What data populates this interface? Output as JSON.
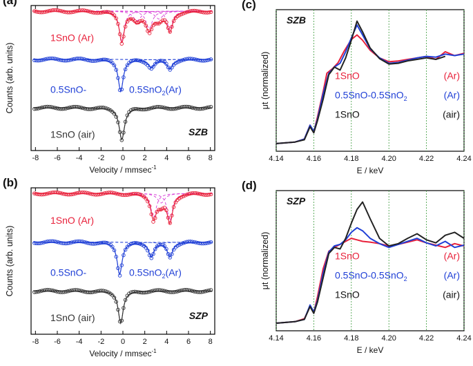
{
  "chart_data": [
    {
      "id": "a",
      "panel_label": "(a)",
      "type": "scatter",
      "title": "",
      "xlabel": "Velocity / mmsec",
      "xlabel_sup": "-1",
      "ylabel": "Counts (arb. units)",
      "xlim": [
        -8.4,
        8.4
      ],
      "xticks": [
        -8,
        -6,
        -4,
        -2,
        0,
        2,
        4,
        6,
        8
      ],
      "xtick_labels": [
        "-8",
        "-6",
        "-4",
        "-2",
        "0",
        "2",
        "4",
        "6",
        "8"
      ],
      "sample_tag": "SZB",
      "series": [
        {
          "name": "1SnO (Ar)",
          "label_main": "1SnO (Ar)",
          "label_left": "",
          "label_right": "",
          "label_sub": "",
          "label_tail": "",
          "color": "#e8203a",
          "fit_color": "#d63ad6",
          "dips": [
            {
              "center": -0.1,
              "depth": 0.95,
              "width": 0.55
            },
            {
              "center": 2.4,
              "depth": 0.55,
              "width": 0.7
            },
            {
              "center": 4.3,
              "depth": 0.6,
              "width": 0.6
            },
            {
              "center": 1.3,
              "depth": 0.3,
              "width": 0.9
            },
            {
              "center": 3.3,
              "depth": 0.25,
              "width": 0.9
            }
          ]
        },
        {
          "name": "0.5SnO-0.5SnO2(Ar)",
          "label_main": "",
          "label_left": "0.5SnO-",
          "label_right": "0.5SnO",
          "label_sub": "2",
          "label_tail": "(Ar)",
          "color": "#1f3fd6",
          "fit_color": "#1f3fd6",
          "dips": [
            {
              "center": -0.2,
              "depth": 1.0,
              "width": 0.55
            },
            {
              "center": 2.6,
              "depth": 0.25,
              "width": 0.7
            },
            {
              "center": 4.3,
              "depth": 0.3,
              "width": 0.6
            }
          ]
        },
        {
          "name": "1SnO (air)",
          "label_main": "1SnO (air)",
          "label_left": "",
          "label_right": "",
          "label_sub": "",
          "label_tail": "",
          "color": "#333333",
          "fit_color": "#222222",
          "dips": [
            {
              "center": -0.1,
              "depth": 1.0,
              "width": 0.6
            }
          ]
        }
      ]
    },
    {
      "id": "b",
      "panel_label": "(b)",
      "type": "scatter",
      "title": "",
      "xlabel": "Velocity / mmsec",
      "xlabel_sup": "-1",
      "ylabel": "Counts (arb. units)",
      "xlim": [
        -8.4,
        8.4
      ],
      "xticks": [
        -8,
        -6,
        -4,
        -2,
        0,
        2,
        4,
        6,
        8
      ],
      "xtick_labels": [
        "-8",
        "-6",
        "-4",
        "-2",
        "0",
        "2",
        "4",
        "6",
        "8"
      ],
      "sample_tag": "SZP",
      "series": [
        {
          "name": "1SnO (Ar)",
          "label_main": "1SnO (Ar)",
          "label_left": "",
          "label_right": "",
          "label_sub": "",
          "label_tail": "",
          "color": "#e8203a",
          "fit_color": "#d63ad6",
          "dips": [
            {
              "center": 2.8,
              "depth": 0.75,
              "width": 0.6
            },
            {
              "center": 4.3,
              "depth": 0.85,
              "width": 0.6
            },
            {
              "center": 3.5,
              "depth": 0.3,
              "width": 0.8
            }
          ]
        },
        {
          "name": "0.5SnO-0.5SnO2(Ar)",
          "label_main": "",
          "label_left": "0.5SnO-",
          "label_right": "0.5SnO",
          "label_sub": "2",
          "label_tail": "(Ar)",
          "color": "#1f3fd6",
          "fit_color": "#1f3fd6",
          "dips": [
            {
              "center": -0.3,
              "depth": 1.0,
              "width": 0.55
            },
            {
              "center": 2.6,
              "depth": 0.45,
              "width": 0.6
            },
            {
              "center": 4.3,
              "depth": 0.45,
              "width": 0.6
            }
          ]
        },
        {
          "name": "1SnO (air)",
          "label_main": "1SnO (air)",
          "label_left": "",
          "label_right": "",
          "label_sub": "",
          "label_tail": "",
          "color": "#333333",
          "fit_color": "#222222",
          "dips": [
            {
              "center": -0.2,
              "depth": 1.0,
              "width": 0.55
            }
          ]
        }
      ]
    },
    {
      "id": "c",
      "panel_label": "(c)",
      "type": "line",
      "title": "",
      "xlabel": "E / keV",
      "ylabel": "μt (normalized)",
      "xlim": [
        4.14,
        4.24
      ],
      "xticks": [
        4.14,
        4.16,
        4.18,
        4.2,
        4.22,
        4.24
      ],
      "xtick_labels": [
        "4.14",
        "4.16",
        "4.18",
        "4.20",
        "4.22",
        "4.24"
      ],
      "ylim": [
        -0.1,
        1.75
      ],
      "grid_x": true,
      "sample_tag": "SZB",
      "legend": [
        {
          "main": "1SnO",
          "sub": "",
          "tag": "(Ar)",
          "color": "#e8203a"
        },
        {
          "main": "0.5SnO-0.5SnO",
          "sub": "2",
          "tag": "(Ar)",
          "color": "#1f3fd6"
        },
        {
          "main": "1SnO",
          "sub": "",
          "tag": "(air)",
          "color": "#111111"
        }
      ],
      "series": [
        {
          "name": "1SnO (Ar)",
          "color": "#e8203a",
          "x": [
            4.14,
            4.15,
            4.155,
            4.158,
            4.16,
            4.162,
            4.165,
            4.167,
            4.17,
            4.173,
            4.176,
            4.18,
            4.183,
            4.186,
            4.19,
            4.195,
            4.2,
            4.205,
            4.21,
            4.215,
            4.22,
            4.225,
            4.23,
            4.235,
            4.24
          ],
          "y": [
            0.0,
            0.02,
            0.06,
            0.24,
            0.15,
            0.35,
            0.68,
            0.92,
            0.98,
            1.06,
            1.2,
            1.36,
            1.42,
            1.35,
            1.22,
            1.12,
            1.07,
            1.08,
            1.1,
            1.12,
            1.14,
            1.1,
            1.2,
            1.15,
            1.18
          ]
        },
        {
          "name": "0.5SnO-0.5SnO2 (Ar)",
          "color": "#1f3fd6",
          "x": [
            4.14,
            4.15,
            4.155,
            4.158,
            4.16,
            4.162,
            4.165,
            4.168,
            4.171,
            4.174,
            4.177,
            4.18,
            4.183,
            4.186,
            4.19,
            4.195,
            4.2,
            4.205,
            4.21,
            4.215,
            4.22,
            4.225,
            4.23,
            4.235,
            4.24
          ],
          "y": [
            0.0,
            0.02,
            0.06,
            0.24,
            0.16,
            0.32,
            0.65,
            0.92,
            1.0,
            1.05,
            1.2,
            1.38,
            1.55,
            1.42,
            1.24,
            1.12,
            1.05,
            1.06,
            1.09,
            1.12,
            1.14,
            1.13,
            1.17,
            1.15,
            1.17
          ]
        },
        {
          "name": "1SnO (air)",
          "color": "#222222",
          "x": [
            4.14,
            4.15,
            4.155,
            4.158,
            4.16,
            4.162,
            4.165,
            4.168,
            4.171,
            4.174,
            4.177,
            4.18,
            4.183,
            4.186,
            4.19,
            4.195,
            4.2,
            4.205,
            4.21,
            4.215,
            4.22,
            4.225,
            4.23
          ],
          "y": [
            0.0,
            0.02,
            0.05,
            0.22,
            0.14,
            0.3,
            0.58,
            0.9,
            1.0,
            0.96,
            1.12,
            1.35,
            1.6,
            1.46,
            1.25,
            1.11,
            1.04,
            1.05,
            1.08,
            1.1,
            1.12,
            1.1,
            1.14
          ]
        }
      ]
    },
    {
      "id": "d",
      "panel_label": "(d)",
      "type": "line",
      "title": "",
      "xlabel": "E / keV",
      "ylabel": "μt (normalized)",
      "xlim": [
        4.14,
        4.24
      ],
      "xticks": [
        4.14,
        4.16,
        4.18,
        4.2,
        4.22,
        4.24
      ],
      "xtick_labels": [
        "4.14",
        "4.16",
        "4.18",
        "4.20",
        "4.22",
        "4.24"
      ],
      "ylim": [
        -0.1,
        1.75
      ],
      "grid_x": true,
      "sample_tag": "SZP",
      "legend": [
        {
          "main": "1SnO",
          "sub": "",
          "tag": "(Ar)",
          "color": "#e8203a"
        },
        {
          "main": "0.5SnO-0.5SnO",
          "sub": "2",
          "tag": "(Ar)",
          "color": "#1f3fd6"
        },
        {
          "main": "1SnO",
          "sub": "",
          "tag": "(air)",
          "color": "#111111"
        }
      ],
      "series": [
        {
          "name": "1SnO (Ar)",
          "color": "#e8203a",
          "x": [
            4.14,
            4.15,
            4.155,
            4.158,
            4.16,
            4.162,
            4.165,
            4.168,
            4.171,
            4.174,
            4.177,
            4.18,
            4.183,
            4.186,
            4.19,
            4.195,
            4.2,
            4.205,
            4.21,
            4.215,
            4.22,
            4.225,
            4.23,
            4.235,
            4.24
          ],
          "y": [
            0.0,
            0.02,
            0.06,
            0.22,
            0.14,
            0.35,
            0.72,
            0.95,
            1.0,
            1.04,
            1.08,
            1.12,
            1.1,
            1.08,
            1.07,
            1.05,
            1.02,
            1.04,
            1.07,
            1.1,
            1.06,
            1.03,
            1.0,
            1.05,
            1.02
          ]
        },
        {
          "name": "0.5SnO-0.5SnO2 (Ar)",
          "color": "#1f3fd6",
          "x": [
            4.14,
            4.15,
            4.155,
            4.158,
            4.16,
            4.162,
            4.165,
            4.168,
            4.171,
            4.174,
            4.177,
            4.18,
            4.183,
            4.186,
            4.19,
            4.195,
            4.2,
            4.205,
            4.21,
            4.215,
            4.22,
            4.225,
            4.23,
            4.235,
            4.24
          ],
          "y": [
            0.0,
            0.02,
            0.05,
            0.24,
            0.15,
            0.3,
            0.66,
            0.94,
            1.02,
            1.04,
            1.1,
            1.2,
            1.26,
            1.22,
            1.12,
            1.05,
            1.0,
            1.04,
            1.08,
            1.12,
            1.06,
            1.02,
            1.08,
            1.0,
            1.03
          ]
        },
        {
          "name": "1SnO (air)",
          "color": "#222222",
          "x": [
            4.14,
            4.15,
            4.155,
            4.158,
            4.16,
            4.162,
            4.165,
            4.168,
            4.171,
            4.174,
            4.177,
            4.18,
            4.183,
            4.186,
            4.19,
            4.195,
            4.2,
            4.205,
            4.21,
            4.215,
            4.22,
            4.225,
            4.23,
            4.235,
            4.24
          ],
          "y": [
            0.0,
            0.02,
            0.05,
            0.22,
            0.13,
            0.28,
            0.6,
            0.92,
            1.0,
            0.98,
            1.12,
            1.32,
            1.5,
            1.6,
            1.38,
            1.12,
            1.02,
            1.05,
            1.12,
            1.18,
            1.1,
            1.06,
            1.16,
            1.2,
            1.12
          ]
        }
      ]
    }
  ]
}
